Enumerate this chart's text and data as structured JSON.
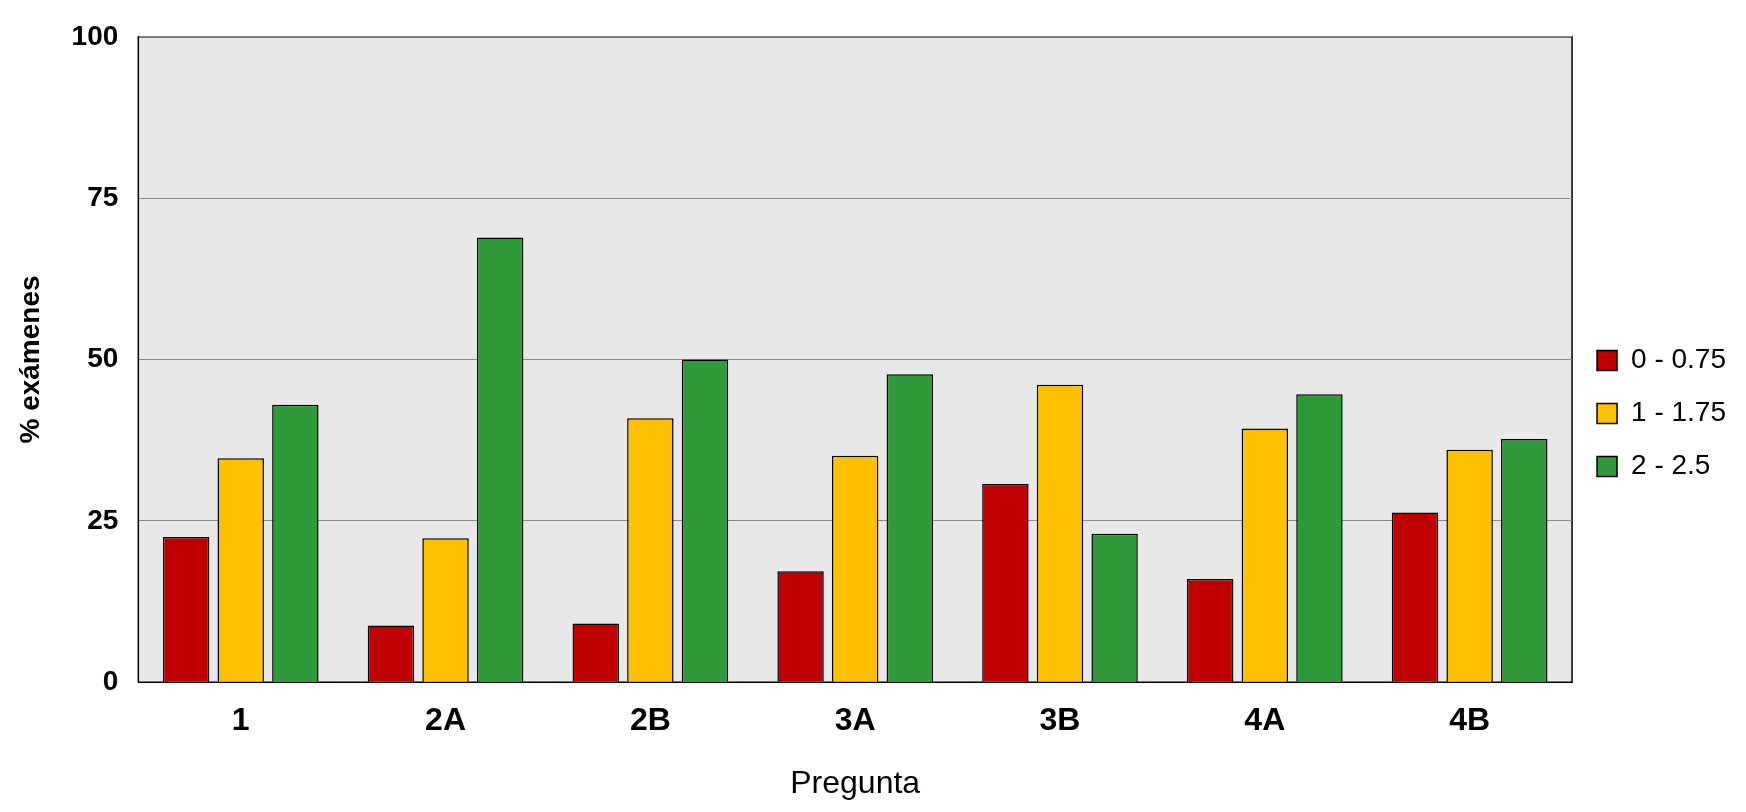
{
  "chart_data": {
    "type": "bar",
    "xlabel": "Pregunta",
    "ylabel": "% exámenes",
    "categories": [
      "1",
      "2A",
      "2B",
      "3A",
      "3B",
      "4A",
      "4B"
    ],
    "series": [
      {
        "name": "0 - 0.75",
        "color": "#c00000",
        "values": [
          22.5,
          8.8,
          9.1,
          17.2,
          30.7,
          16.0,
          26.3
        ]
      },
      {
        "name": "1 - 1.75",
        "color": "#ffc000",
        "values": [
          34.7,
          22.3,
          40.9,
          35.1,
          46.1,
          39.3,
          36.0
        ]
      },
      {
        "name": "2 - 2.5",
        "color": "#2e9a3a",
        "values": [
          43.0,
          68.9,
          50.0,
          47.7,
          23.0,
          44.6,
          37.7
        ]
      }
    ],
    "ylim": [
      0,
      100
    ],
    "yticks": [
      0,
      25,
      50,
      75,
      100
    ],
    "grid": "y",
    "legend": "right"
  }
}
